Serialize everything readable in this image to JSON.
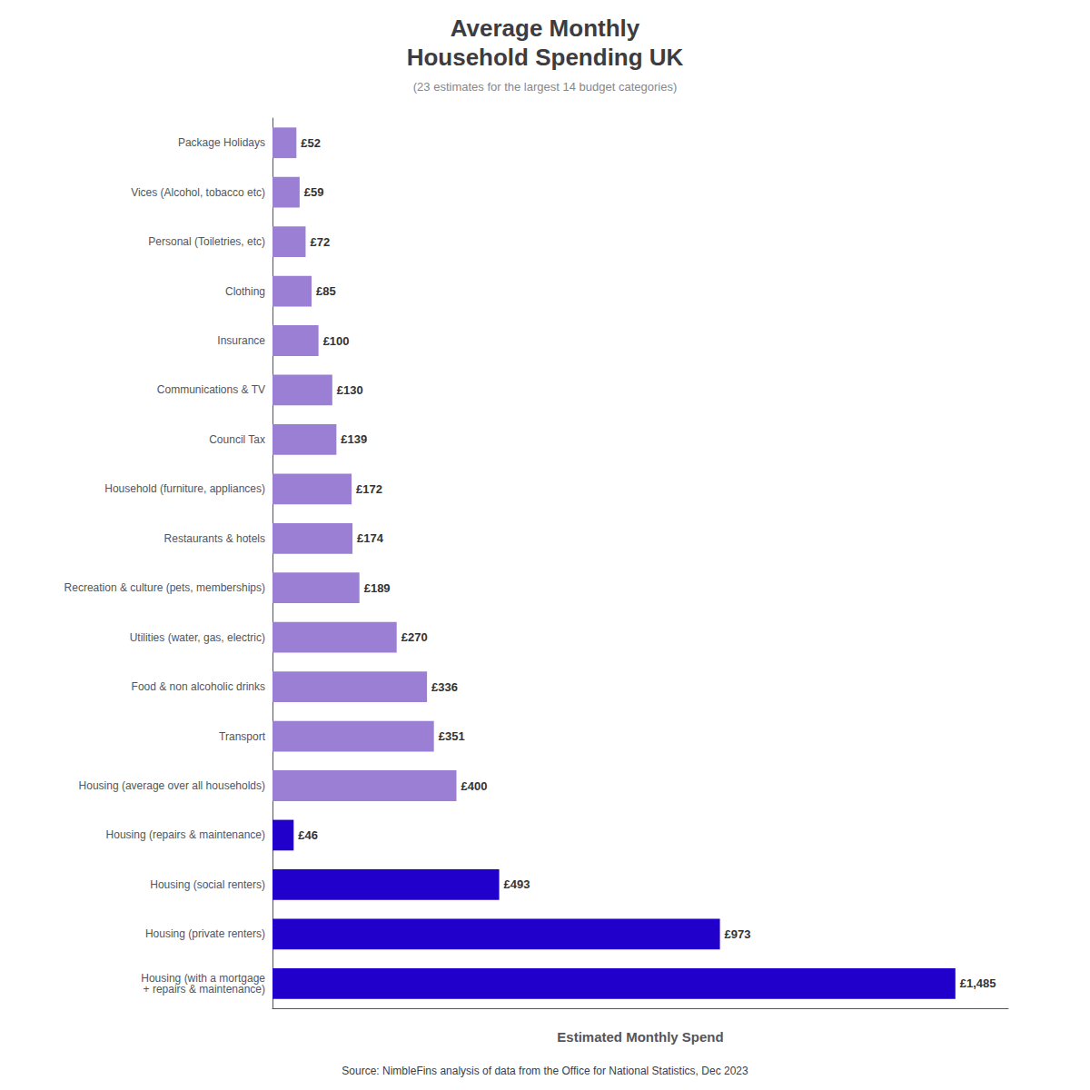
{
  "chart_data": {
    "type": "bar",
    "orientation": "horizontal",
    "title": "Average Monthly\nHousehold Spending UK",
    "subtitle": "(23 estimates for the largest 14 budget categories)",
    "xlabel": "Estimated Monthly Spend",
    "annotations": [
      "Source: NimbleFins analysis of data from the Office for National Statistics, Dec 2023"
    ],
    "categories": [
      "Housing (with a mortgage\n+ repairs & maintenance)",
      "Housing (private renters)",
      "Housing (social renters)",
      "Housing (repairs & maintenance)",
      "Housing (average over all households)",
      "Transport",
      "Food & non alcoholic drinks",
      "Utilities (water, gas, electric)",
      "Recreation & culture (pets, memberships)",
      "Restaurants & hotels",
      "Household (furniture, appliances)",
      "Council Tax",
      "Communications & TV",
      "Insurance",
      "Clothing",
      "Personal (Toiletries, etc)",
      "Vices (Alcohol, tobacco etc)",
      "Package Holidays"
    ],
    "values": [
      1485,
      973,
      493,
      46,
      400,
      351,
      336,
      270,
      189,
      174,
      172,
      139,
      130,
      100,
      85,
      72,
      59,
      52
    ],
    "value_labels": [
      "£1,485",
      "£973",
      "£493",
      "£46",
      "£400",
      "£351",
      "£336",
      "£270",
      "£189",
      "£174",
      "£172",
      "£139",
      "£130",
      "£100",
      "£85",
      "£72",
      "£59",
      "£52"
    ],
    "data_labels": true,
    "colors": [
      "#2200CC",
      "#2200CC",
      "#2200CC",
      "#2200CC",
      "#9B7FD4",
      "#9B7FD4",
      "#9B7FD4",
      "#9B7FD4",
      "#9B7FD4",
      "#9B7FD4",
      "#9B7FD4",
      "#9B7FD4",
      "#9B7FD4",
      "#9B7FD4",
      "#9B7FD4",
      "#9B7FD4",
      "#9B7FD4",
      "#9B7FD4"
    ],
    "xlim": [
      0,
      1600
    ],
    "tick_labels": "y",
    "grid": false
  }
}
